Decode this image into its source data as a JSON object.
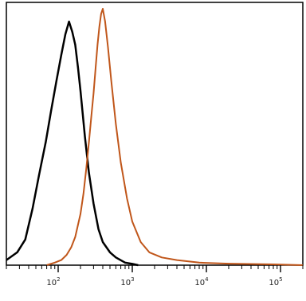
{
  "chart_data": {
    "type": "line",
    "title": "",
    "xlabel": "",
    "ylabel": "",
    "x_scale": "log",
    "xlim": [
      20,
      200000
    ],
    "ylim": [
      0,
      100
    ],
    "grid": false,
    "x_ticks": [
      {
        "value": 100,
        "base": "10",
        "exp": "2"
      },
      {
        "value": 1000,
        "base": "10",
        "exp": "3"
      },
      {
        "value": 10000,
        "base": "10",
        "exp": "4"
      },
      {
        "value": 100000,
        "base": "10",
        "exp": "5"
      }
    ],
    "series": [
      {
        "color": "#000000",
        "x": [
          20,
          28,
          36,
          45,
          55,
          68,
          80,
          95,
          110,
          125,
          140,
          155,
          170,
          185,
          200,
          230,
          260,
          300,
          350,
          400,
          500,
          600,
          800,
          1000,
          1200
        ],
        "y": [
          2,
          5,
          10,
          22,
          35,
          48,
          60,
          72,
          82,
          90,
          95,
          91,
          86,
          77,
          68,
          50,
          36,
          24,
          14,
          9,
          5,
          3,
          1,
          0.5,
          0
        ]
      },
      {
        "color": "#c0561a",
        "x": [
          70,
          90,
          110,
          130,
          150,
          170,
          200,
          220,
          240,
          260,
          280,
          300,
          320,
          340,
          360,
          380,
          400,
          430,
          470,
          520,
          600,
          700,
          850,
          1000,
          1300,
          1700,
          2500,
          4000,
          8000,
          20000,
          80000,
          200000
        ],
        "y": [
          0,
          1,
          2,
          4,
          7,
          11,
          20,
          28,
          38,
          48,
          58,
          67,
          77,
          86,
          93,
          98,
          100,
          95,
          85,
          72,
          55,
          40,
          26,
          17,
          9,
          5,
          3,
          2,
          1,
          0.6,
          0.3,
          0
        ]
      }
    ]
  }
}
